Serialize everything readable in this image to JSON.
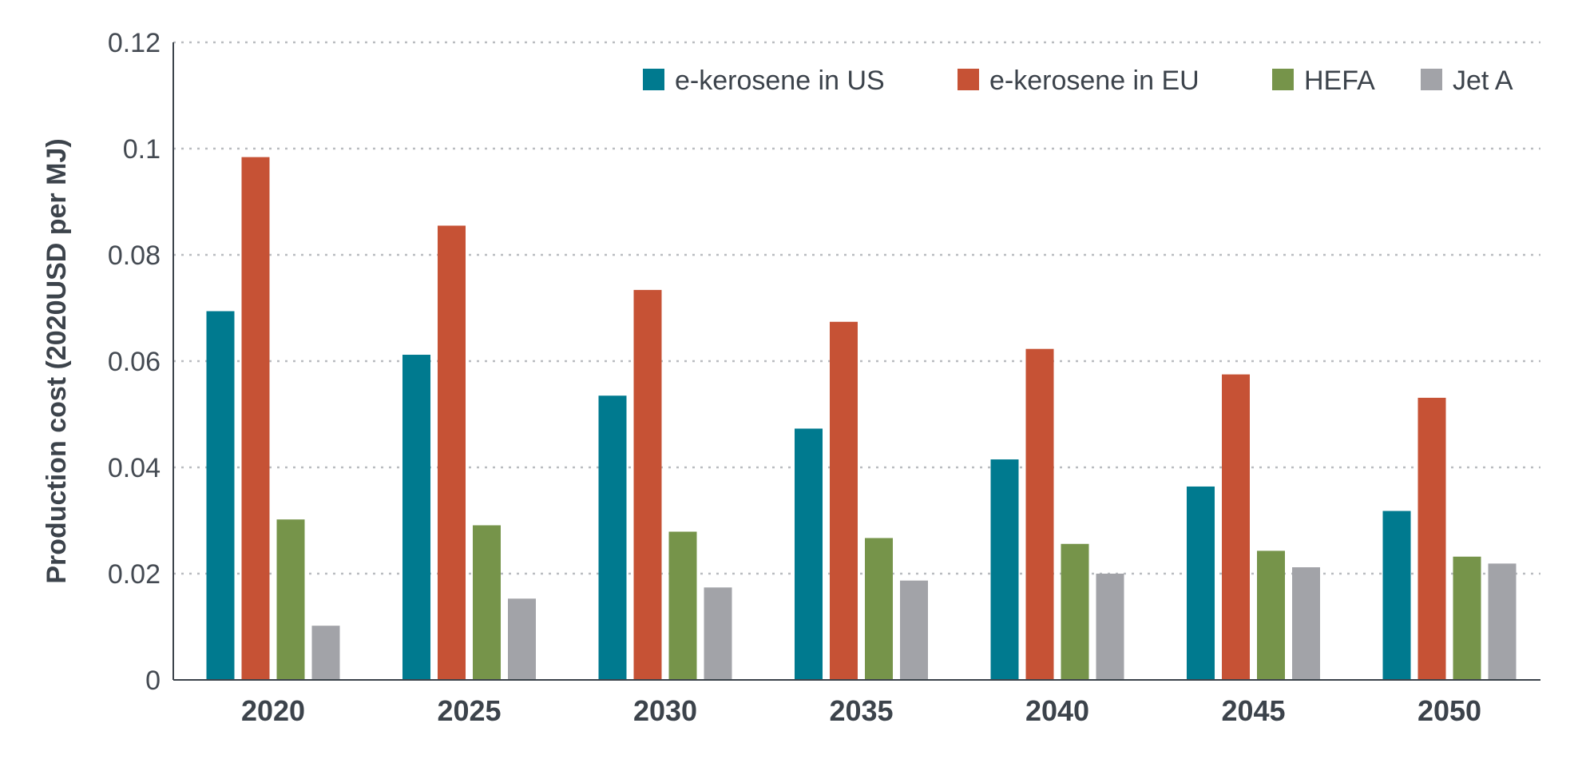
{
  "chart_data": {
    "type": "bar",
    "title": "",
    "xlabel": "",
    "ylabel": "Production cost (2020USD per MJ)",
    "ylim": [
      0,
      0.12
    ],
    "yticks": [
      0,
      0.02,
      0.04,
      0.06,
      0.08,
      0.1,
      0.12
    ],
    "ytick_labels": [
      "0",
      "0.02",
      "0.04",
      "0.06",
      "0.08",
      "0.1",
      "0.12"
    ],
    "grid": true,
    "legend_position": "top-right",
    "categories": [
      "2020",
      "2025",
      "2030",
      "2035",
      "2040",
      "2045",
      "2050"
    ],
    "series": [
      {
        "name": "e-kerosene in US",
        "color": "#007A8F",
        "values": [
          0.0694,
          0.0612,
          0.0535,
          0.0473,
          0.0415,
          0.0364,
          0.0318
        ]
      },
      {
        "name": "e-kerosene in EU",
        "color": "#C65235",
        "values": [
          0.0984,
          0.0855,
          0.0734,
          0.0674,
          0.0623,
          0.0575,
          0.0531
        ]
      },
      {
        "name": "HEFA",
        "color": "#76944A",
        "values": [
          0.0302,
          0.0291,
          0.0279,
          0.0267,
          0.0256,
          0.0243,
          0.0232
        ]
      },
      {
        "name": "Jet A",
        "color": "#A2A3A8",
        "values": [
          0.0102,
          0.0153,
          0.0174,
          0.0187,
          0.02,
          0.0212,
          0.0219
        ]
      }
    ]
  }
}
